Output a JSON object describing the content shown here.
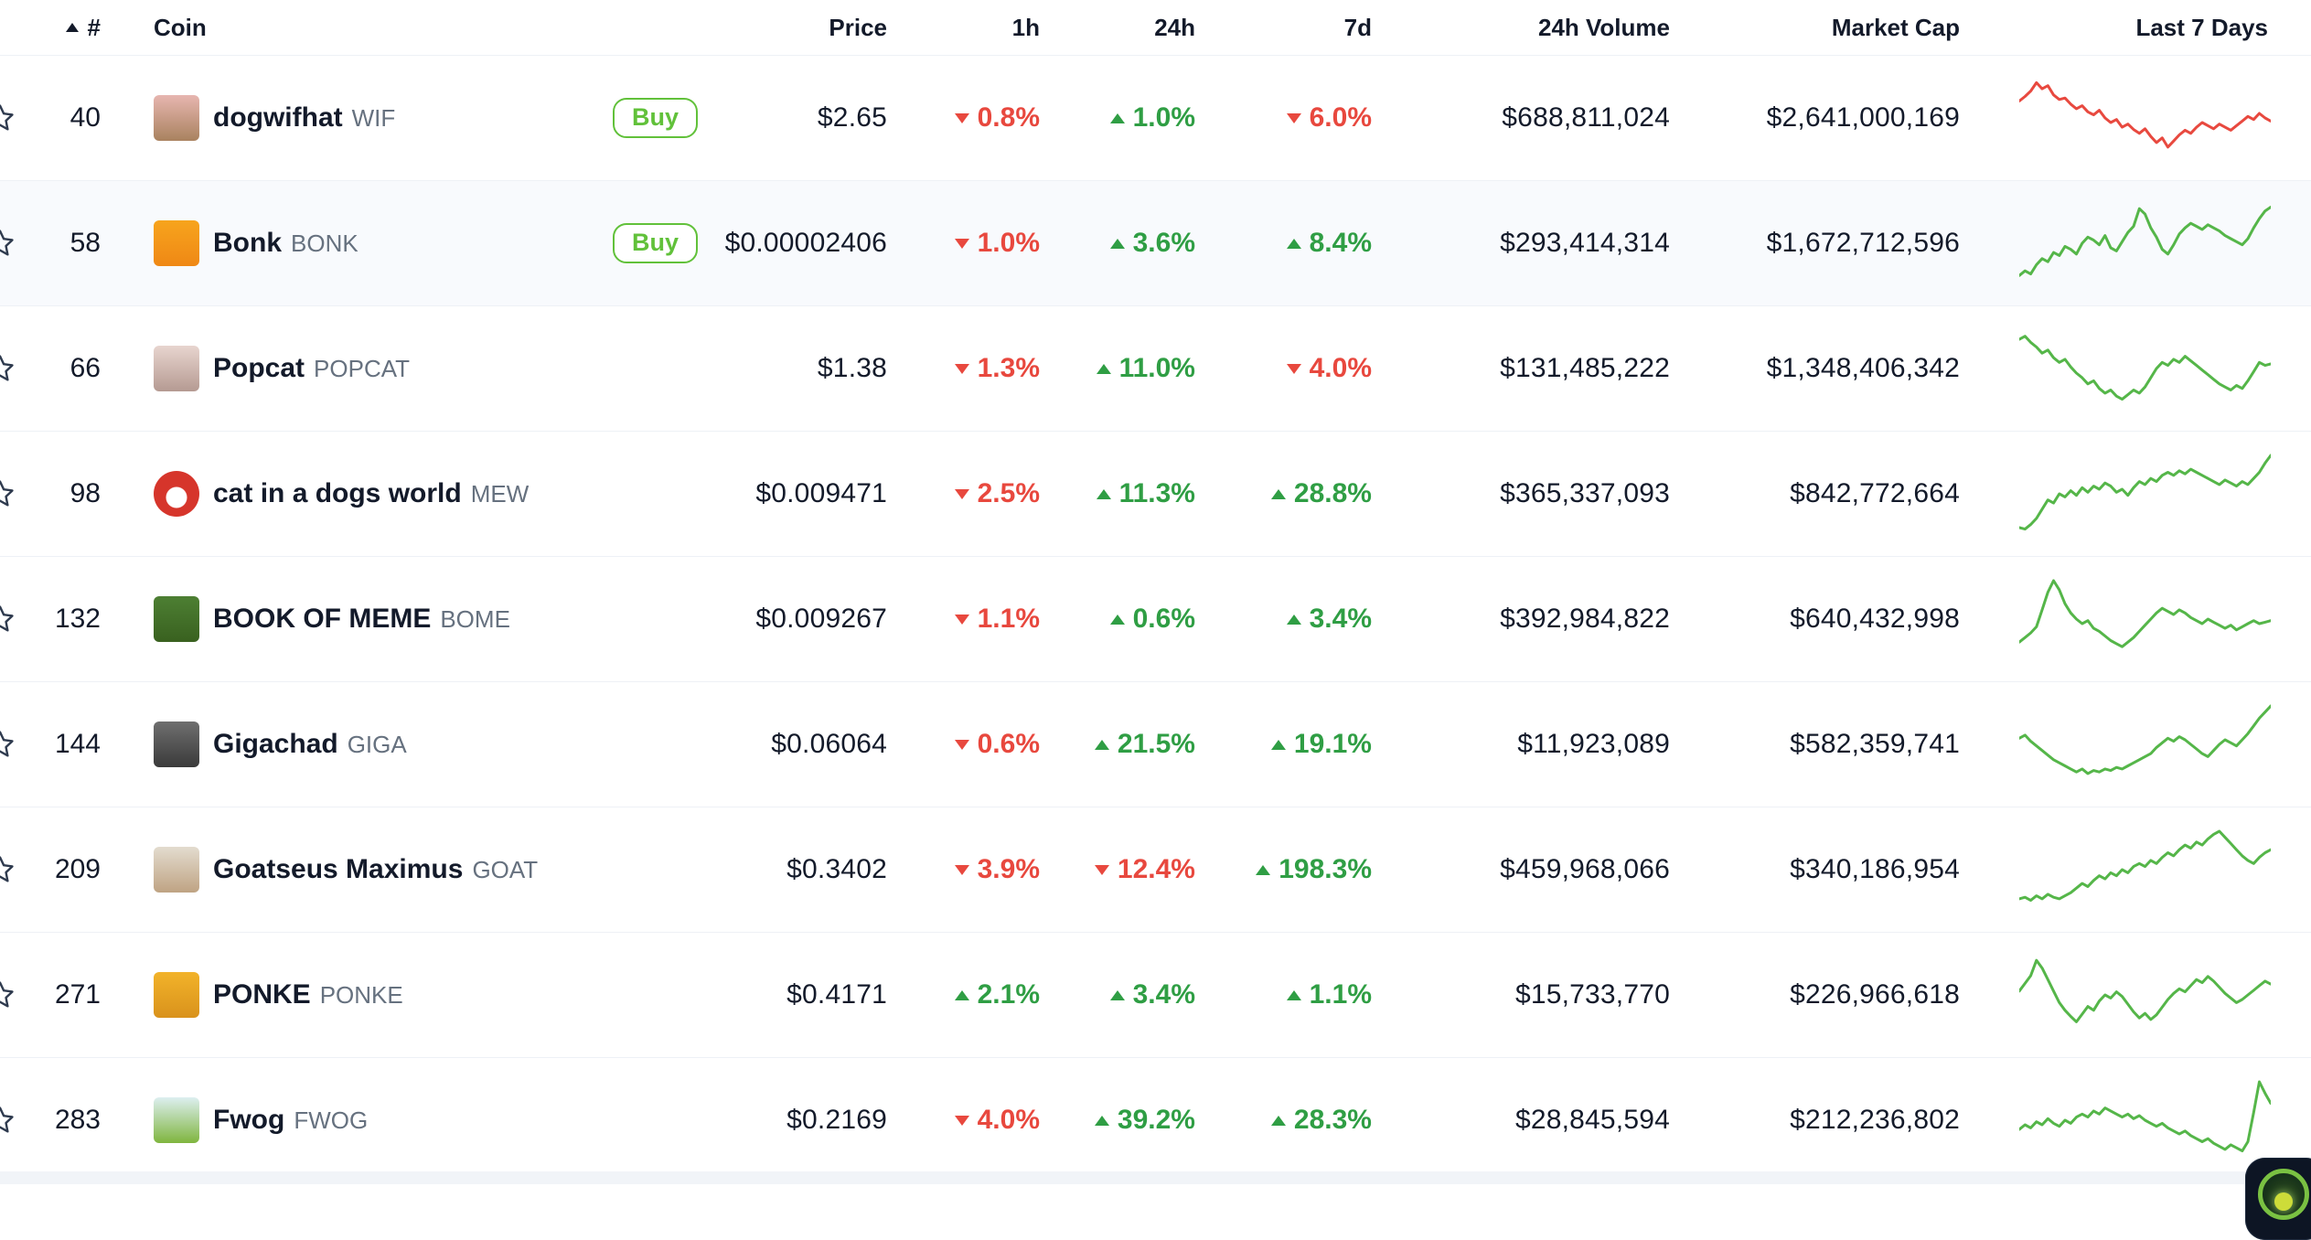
{
  "labels": {
    "buy": "Buy"
  },
  "header": {
    "rank": "#",
    "coin": "Coin",
    "price": "Price",
    "h1": "1h",
    "h24": "24h",
    "d7": "7d",
    "volume": "24h Volume",
    "market_cap": "Market Cap",
    "last7": "Last 7 Days"
  },
  "colors": {
    "up_green": "#2f9e44",
    "down_red": "#e8483e",
    "spark_green": "#55b649",
    "spark_red": "#e8493f",
    "buy_green": "#61c13a",
    "ticker_gray": "#66717f",
    "text": "#131a2a"
  },
  "coins": [
    {
      "rank": "40",
      "name": "dogwifhat",
      "symbol": "WIF",
      "buy": true,
      "highlighted": false,
      "price": "$2.65",
      "h1": {
        "value": "0.8%",
        "dir": "down"
      },
      "h24": {
        "value": "1.0%",
        "dir": "up"
      },
      "d7": {
        "value": "6.0%",
        "dir": "down"
      },
      "volume": "$688,811,024",
      "market_cap": "$2,641,000,169",
      "icon": {
        "bg": "#e7b6b0",
        "bg2": "#a9825f",
        "shape": "square"
      },
      "spark": {
        "color": "#e8493f",
        "points": [
          72,
          78,
          85,
          96,
          88,
          92,
          80,
          74,
          76,
          68,
          62,
          66,
          58,
          54,
          60,
          50,
          44,
          48,
          38,
          42,
          35,
          30,
          36,
          26,
          18,
          24,
          12,
          20,
          28,
          34,
          30,
          38,
          44,
          40,
          36,
          42,
          38,
          34,
          40,
          46,
          52,
          48,
          56,
          50,
          46
        ]
      }
    },
    {
      "rank": "58",
      "name": "Bonk",
      "symbol": "BONK",
      "buy": true,
      "highlighted": true,
      "price": "$0.00002406",
      "h1": {
        "value": "1.0%",
        "dir": "down"
      },
      "h24": {
        "value": "3.6%",
        "dir": "up"
      },
      "d7": {
        "value": "8.4%",
        "dir": "up"
      },
      "volume": "$293,414,314",
      "market_cap": "$1,672,712,596",
      "icon": {
        "bg": "#f7a41d",
        "bg2": "#ef8815",
        "shape": "square"
      },
      "spark": {
        "color": "#55b649",
        "points": [
          8,
          14,
          10,
          22,
          30,
          26,
          38,
          34,
          46,
          42,
          36,
          50,
          58,
          54,
          48,
          60,
          44,
          40,
          52,
          64,
          72,
          95,
          88,
          70,
          58,
          42,
          36,
          48,
          62,
          70,
          76,
          72,
          68,
          74,
          70,
          66,
          60,
          56,
          52,
          48,
          56,
          70,
          82,
          92,
          97
        ]
      }
    },
    {
      "rank": "66",
      "name": "Popcat",
      "symbol": "POPCAT",
      "buy": false,
      "highlighted": false,
      "price": "$1.38",
      "h1": {
        "value": "1.3%",
        "dir": "down"
      },
      "h24": {
        "value": "11.0%",
        "dir": "up"
      },
      "d7": {
        "value": "4.0%",
        "dir": "down"
      },
      "volume": "$131,485,222",
      "market_cap": "$1,348,406,342",
      "icon": {
        "bg": "#e8d5cf",
        "bg2": "#b59a92",
        "shape": "square"
      },
      "spark": {
        "color": "#55b649",
        "points": [
          88,
          92,
          84,
          78,
          70,
          74,
          64,
          58,
          62,
          52,
          44,
          38,
          30,
          34,
          24,
          18,
          22,
          14,
          10,
          16,
          22,
          18,
          26,
          38,
          50,
          58,
          54,
          62,
          58,
          66,
          60,
          54,
          48,
          42,
          36,
          30,
          26,
          22,
          28,
          24,
          34,
          46,
          58,
          54,
          56
        ]
      }
    },
    {
      "rank": "98",
      "name": "cat in a dogs world",
      "symbol": "MEW",
      "buy": false,
      "highlighted": false,
      "price": "$0.009471",
      "h1": {
        "value": "2.5%",
        "dir": "down"
      },
      "h24": {
        "value": "11.3%",
        "dir": "up"
      },
      "d7": {
        "value": "28.8%",
        "dir": "up"
      },
      "volume": "$365,337,093",
      "market_cap": "$842,772,664",
      "icon": {
        "bg": "#d6352b",
        "bg2": "#ffffff",
        "shape": "circle"
      },
      "spark": {
        "color": "#55b649",
        "points": [
          6,
          4,
          10,
          18,
          30,
          42,
          38,
          50,
          46,
          54,
          48,
          58,
          52,
          60,
          56,
          64,
          60,
          52,
          56,
          48,
          58,
          66,
          62,
          70,
          66,
          74,
          78,
          74,
          80,
          76,
          82,
          78,
          74,
          70,
          66,
          62,
          68,
          64,
          60,
          66,
          62,
          70,
          78,
          90,
          100
        ]
      }
    },
    {
      "rank": "132",
      "name": "BOOK OF MEME",
      "symbol": "BOME",
      "buy": false,
      "highlighted": false,
      "price": "$0.009267",
      "h1": {
        "value": "1.1%",
        "dir": "down"
      },
      "h24": {
        "value": "0.6%",
        "dir": "up"
      },
      "d7": {
        "value": "3.4%",
        "dir": "up"
      },
      "volume": "$392,984,822",
      "market_cap": "$640,432,998",
      "icon": {
        "bg": "#4d7f33",
        "bg2": "#39611f",
        "shape": "square"
      },
      "spark": {
        "color": "#55b649",
        "points": [
          20,
          26,
          32,
          40,
          62,
          85,
          100,
          88,
          70,
          58,
          50,
          44,
          48,
          38,
          34,
          28,
          22,
          18,
          14,
          20,
          26,
          34,
          42,
          50,
          58,
          64,
          60,
          56,
          62,
          58,
          52,
          48,
          44,
          50,
          46,
          42,
          38,
          42,
          36,
          40,
          44,
          48,
          44,
          46,
          48
        ]
      }
    },
    {
      "rank": "144",
      "name": "Gigachad",
      "symbol": "GIGA",
      "buy": false,
      "highlighted": false,
      "price": "$0.06064",
      "h1": {
        "value": "0.6%",
        "dir": "down"
      },
      "h24": {
        "value": "21.5%",
        "dir": "up"
      },
      "d7": {
        "value": "19.1%",
        "dir": "up"
      },
      "volume": "$11,923,089",
      "market_cap": "$582,359,741",
      "icon": {
        "bg": "#6f6f6f",
        "bg2": "#3a3a3a",
        "shape": "square"
      },
      "spark": {
        "color": "#55b649",
        "points": [
          58,
          62,
          54,
          48,
          42,
          36,
          30,
          26,
          22,
          18,
          14,
          18,
          12,
          16,
          14,
          18,
          16,
          20,
          18,
          22,
          26,
          30,
          34,
          38,
          46,
          52,
          58,
          54,
          60,
          56,
          50,
          44,
          38,
          34,
          42,
          50,
          56,
          52,
          48,
          56,
          64,
          74,
          84,
          92,
          100
        ]
      }
    },
    {
      "rank": "209",
      "name": "Goatseus Maximus",
      "symbol": "GOAT",
      "buy": false,
      "highlighted": false,
      "price": "$0.3402",
      "h1": {
        "value": "3.9%",
        "dir": "down"
      },
      "h24": {
        "value": "12.4%",
        "dir": "down"
      },
      "d7": {
        "value": "198.3%",
        "dir": "up"
      },
      "volume": "$459,968,066",
      "market_cap": "$340,186,954",
      "icon": {
        "bg": "#e3dccf",
        "bg2": "#bfa383",
        "shape": "square"
      },
      "spark": {
        "color": "#55b649",
        "points": [
          12,
          14,
          10,
          16,
          12,
          18,
          14,
          12,
          16,
          20,
          26,
          32,
          28,
          36,
          42,
          38,
          46,
          42,
          50,
          46,
          54,
          58,
          54,
          62,
          58,
          66,
          72,
          68,
          76,
          82,
          78,
          86,
          82,
          90,
          96,
          100,
          92,
          84,
          76,
          68,
          62,
          58,
          66,
          72,
          76
        ]
      }
    },
    {
      "rank": "271",
      "name": "PONKE",
      "symbol": "PONKE",
      "buy": false,
      "highlighted": false,
      "price": "$0.4171",
      "h1": {
        "value": "2.1%",
        "dir": "up"
      },
      "h24": {
        "value": "3.4%",
        "dir": "up"
      },
      "d7": {
        "value": "1.1%",
        "dir": "up"
      },
      "volume": "$15,733,770",
      "market_cap": "$226,966,618",
      "icon": {
        "bg": "#f2b32a",
        "bg2": "#d9921c",
        "shape": "square"
      },
      "spark": {
        "color": "#55b649",
        "points": [
          55,
          65,
          75,
          95,
          85,
          70,
          55,
          40,
          30,
          22,
          15,
          25,
          35,
          30,
          42,
          50,
          46,
          54,
          48,
          38,
          28,
          20,
          26,
          18,
          24,
          34,
          44,
          52,
          58,
          54,
          62,
          70,
          66,
          74,
          68,
          60,
          52,
          46,
          40,
          44,
          50,
          56,
          62,
          68,
          64
        ]
      }
    },
    {
      "rank": "283",
      "name": "Fwog",
      "symbol": "FWOG",
      "buy": false,
      "highlighted": false,
      "price": "$0.2169",
      "h1": {
        "value": "4.0%",
        "dir": "down"
      },
      "h24": {
        "value": "39.2%",
        "dir": "up"
      },
      "d7": {
        "value": "28.3%",
        "dir": "up"
      },
      "volume": "$28,845,594",
      "market_cap": "$212,236,802",
      "icon": {
        "bg": "#ddeff0",
        "bg2": "#7fb53e",
        "shape": "square"
      },
      "spark": {
        "color": "#55b649",
        "points": [
          38,
          44,
          40,
          48,
          44,
          52,
          46,
          42,
          50,
          46,
          54,
          58,
          54,
          62,
          58,
          66,
          62,
          58,
          54,
          58,
          52,
          56,
          50,
          46,
          42,
          46,
          40,
          36,
          32,
          36,
          30,
          26,
          22,
          26,
          20,
          16,
          12,
          18,
          14,
          10,
          22,
          60,
          100,
          85,
          72
        ]
      }
    }
  ],
  "widget": {
    "name": "support-chat"
  }
}
